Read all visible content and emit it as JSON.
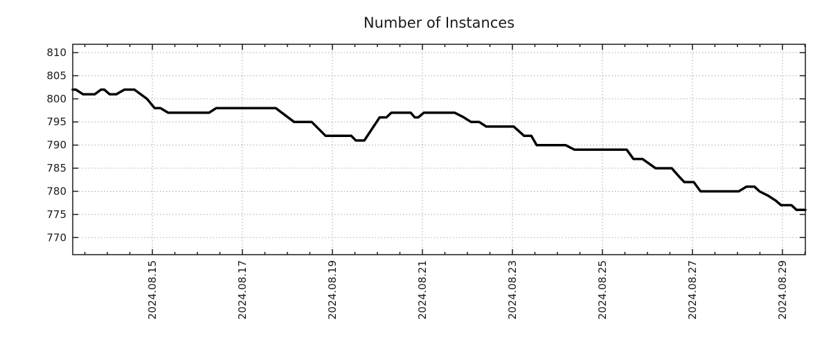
{
  "chart_data": {
    "type": "line",
    "title": "Number of Instances",
    "legend": "none",
    "grid": true,
    "x_axis": {
      "unit": "date (day of August 2024)",
      "range": [
        13.23,
        29.51
      ],
      "major_ticks": [
        15,
        17,
        19,
        21,
        23,
        25,
        27,
        29
      ],
      "tick_labels": [
        "2024.08.15",
        "2024.08.17",
        "2024.08.19",
        "2024.08.21",
        "2024.08.23",
        "2024.08.25",
        "2024.08.27",
        "2024.08.29"
      ],
      "minor_tick_step": 0.5,
      "label_rotation_deg": -90
    },
    "y_axis": {
      "range": [
        766.3,
        811.8
      ],
      "ticks": [
        810,
        805,
        800,
        795,
        790,
        785,
        780,
        775,
        770
      ],
      "tick_labels": [
        "810",
        "805",
        "800",
        "795",
        "790",
        "785",
        "780",
        "775",
        "770"
      ]
    },
    "series": [
      {
        "name": "instances",
        "color": "#000000",
        "line_width": 3.5,
        "points": [
          [
            13.23,
            802
          ],
          [
            13.3,
            802
          ],
          [
            13.46,
            801
          ],
          [
            13.72,
            801
          ],
          [
            13.86,
            802
          ],
          [
            13.93,
            802
          ],
          [
            14.05,
            801
          ],
          [
            14.2,
            801
          ],
          [
            14.38,
            802
          ],
          [
            14.6,
            802
          ],
          [
            14.88,
            800
          ],
          [
            15.05,
            798
          ],
          [
            15.18,
            798
          ],
          [
            15.35,
            797
          ],
          [
            16.26,
            797
          ],
          [
            16.42,
            798
          ],
          [
            17.74,
            798
          ],
          [
            18.15,
            795
          ],
          [
            18.54,
            795
          ],
          [
            18.85,
            792
          ],
          [
            19.42,
            792
          ],
          [
            19.52,
            791
          ],
          [
            19.71,
            791
          ],
          [
            20.05,
            796
          ],
          [
            20.2,
            796
          ],
          [
            20.31,
            797
          ],
          [
            20.74,
            797
          ],
          [
            20.83,
            796
          ],
          [
            20.91,
            796
          ],
          [
            21.03,
            797
          ],
          [
            21.72,
            797
          ],
          [
            21.92,
            796
          ],
          [
            22.08,
            795
          ],
          [
            22.26,
            795
          ],
          [
            22.42,
            794
          ],
          [
            23.03,
            794
          ],
          [
            23.26,
            792
          ],
          [
            23.42,
            792
          ],
          [
            23.54,
            790
          ],
          [
            24.18,
            790
          ],
          [
            24.38,
            789
          ],
          [
            25.54,
            789
          ],
          [
            25.69,
            787
          ],
          [
            25.89,
            787
          ],
          [
            26.18,
            785
          ],
          [
            26.54,
            785
          ],
          [
            26.63,
            784
          ],
          [
            26.72,
            783
          ],
          [
            26.82,
            782
          ],
          [
            27.03,
            782
          ],
          [
            27.18,
            780
          ],
          [
            28.03,
            780
          ],
          [
            28.2,
            781
          ],
          [
            28.38,
            781
          ],
          [
            28.49,
            780
          ],
          [
            28.69,
            779
          ],
          [
            28.85,
            778
          ],
          [
            28.97,
            777
          ],
          [
            29.2,
            777
          ],
          [
            29.31,
            776
          ],
          [
            29.51,
            776
          ]
        ]
      }
    ]
  },
  "style": {
    "background": "#ffffff",
    "line_color": "#000000",
    "grid_color": "#a6a6a6",
    "axis_color": "#1a1a1a",
    "text_color": "#1a1a1a"
  }
}
